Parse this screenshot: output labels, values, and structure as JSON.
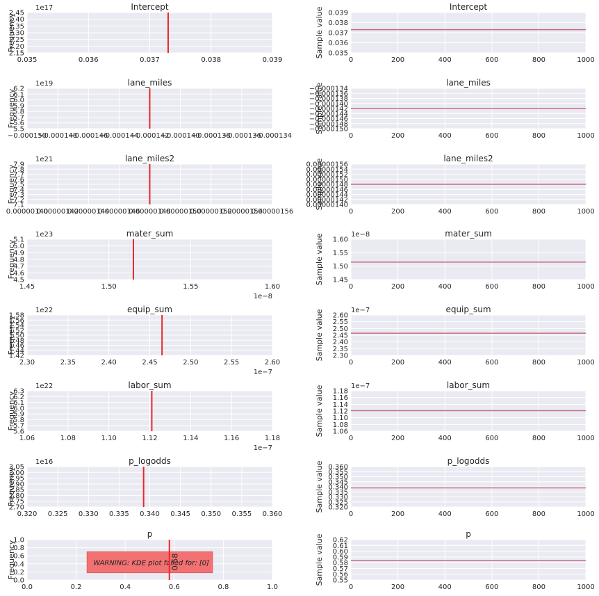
{
  "chart_data": [
    {
      "type": "histogram",
      "title": "Intercept",
      "ylabel": "Frequency",
      "offset_text": "1e17",
      "xoffset_text": "",
      "xticks": [
        "0.035",
        "0.036",
        "0.037",
        "0.038",
        "0.039"
      ],
      "yticks": [
        "2.15",
        "2.20",
        "2.25",
        "2.30",
        "2.35",
        "2.40",
        "2.45"
      ],
      "value_label": "0.0373"
    },
    {
      "type": "line",
      "title": "Intercept",
      "ylabel": "Sample value",
      "offset_text": "",
      "xticks": [
        "0",
        "200",
        "400",
        "600",
        "800",
        "1000"
      ],
      "yticks": [
        "0.035",
        "0.036",
        "0.037",
        "0.038",
        "0.039"
      ],
      "x_range": [
        0,
        1000
      ],
      "y_value": 0.0373
    },
    {
      "type": "histogram",
      "title": "lane_miles",
      "ylabel": "Frequency",
      "offset_text": "1e19",
      "xoffset_text": "",
      "xticks": [
        "−0.000150",
        "−0.000148",
        "−0.000146",
        "−0.000144",
        "−0.000142",
        "−0.000140",
        "−0.000138",
        "−0.000136",
        "−0.000134"
      ],
      "yticks": [
        "5.5",
        "5.6",
        "5.7",
        "5.8",
        "5.9",
        "6.0",
        "6.1",
        "6.2"
      ],
      "value_label": "−0.000142"
    },
    {
      "type": "line",
      "title": "lane_miles",
      "ylabel": "Sample value",
      "offset_text": "",
      "xticks": [
        "0",
        "200",
        "400",
        "600",
        "800",
        "1000"
      ],
      "yticks": [
        "−0.000150",
        "−0.000148",
        "−0.000146",
        "−0.000144",
        "−0.000142",
        "−0.000140",
        "−0.000138",
        "−0.000136",
        "−0.000134"
      ],
      "x_range": [
        0,
        1000
      ],
      "y_value": -0.000142
    },
    {
      "type": "histogram",
      "title": "lane_miles2",
      "ylabel": "Frequency",
      "offset_text": "1e21",
      "xoffset_text": "",
      "xticks": [
        "0.00000140",
        "0.00000142",
        "0.00000144",
        "0.00000146",
        "0.00000148",
        "0.00000150",
        "0.00000152",
        "0.00000154",
        "0.00000156"
      ],
      "yticks": [
        "7.1",
        "7.2",
        "7.3",
        "7.4",
        "7.5",
        "7.6",
        "7.7",
        "7.8",
        "7.9"
      ],
      "value_label": "0.00000148"
    },
    {
      "type": "line",
      "title": "lane_miles2",
      "ylabel": "Sample value",
      "offset_text": "",
      "xticks": [
        "0",
        "200",
        "400",
        "600",
        "800",
        "1000"
      ],
      "yticks": [
        "0.00000140",
        "0.00000142",
        "0.00000144",
        "0.00000146",
        "0.00000148",
        "0.00000150",
        "0.00000152",
        "0.00000154",
        "0.00000156"
      ],
      "x_range": [
        0,
        1000
      ],
      "y_value": 1.48e-06
    },
    {
      "type": "histogram",
      "title": "mater_sum",
      "ylabel": "Frequency",
      "offset_text": "1e23",
      "xoffset_text": "1e−8",
      "xticks": [
        "1.45",
        "1.50",
        "1.55",
        "1.60"
      ],
      "yticks": [
        "4.5",
        "4.6",
        "4.7",
        "4.8",
        "4.9",
        "5.0",
        "5.1"
      ],
      "value_label": "1.515"
    },
    {
      "type": "line",
      "title": "mater_sum",
      "ylabel": "Sample value",
      "offset_text": "1e−8",
      "xticks": [
        "0",
        "200",
        "400",
        "600",
        "800",
        "1000"
      ],
      "yticks": [
        "1.45",
        "1.50",
        "1.55",
        "1.60"
      ],
      "x_range": [
        0,
        1000
      ],
      "y_value": 1.515
    },
    {
      "type": "histogram",
      "title": "equip_sum",
      "ylabel": "Frequency",
      "offset_text": "1e22",
      "xoffset_text": "1e−7",
      "xticks": [
        "2.30",
        "2.35",
        "2.40",
        "2.45",
        "2.50",
        "2.55",
        "2.60"
      ],
      "yticks": [
        "1.42",
        "1.44",
        "1.46",
        "1.48",
        "1.50",
        "1.52",
        "1.54",
        "1.56",
        "1.58"
      ],
      "value_label": "2.465"
    },
    {
      "type": "line",
      "title": "equip_sum",
      "ylabel": "Sample value",
      "offset_text": "1e−7",
      "xticks": [
        "0",
        "200",
        "400",
        "600",
        "800",
        "1000"
      ],
      "yticks": [
        "2.30",
        "2.35",
        "2.40",
        "2.45",
        "2.50",
        "2.55",
        "2.60"
      ],
      "x_range": [
        0,
        1000
      ],
      "y_value": 2.465
    },
    {
      "type": "histogram",
      "title": "labor_sum",
      "ylabel": "Frequency",
      "offset_text": "1e22",
      "xoffset_text": "1e−7",
      "xticks": [
        "1.06",
        "1.08",
        "1.10",
        "1.12",
        "1.14",
        "1.16",
        "1.18"
      ],
      "yticks": [
        "5.6",
        "5.7",
        "5.8",
        "5.9",
        "6.0",
        "6.1",
        "6.2",
        "6.3"
      ],
      "value_label": "1.121"
    },
    {
      "type": "line",
      "title": "labor_sum",
      "ylabel": "Sample value",
      "offset_text": "1e−7",
      "xticks": [
        "0",
        "200",
        "400",
        "600",
        "800",
        "1000"
      ],
      "yticks": [
        "1.06",
        "1.08",
        "1.10",
        "1.12",
        "1.14",
        "1.16",
        "1.18"
      ],
      "x_range": [
        0,
        1000
      ],
      "y_value": 1.121
    },
    {
      "type": "histogram",
      "title": "p_logodds",
      "ylabel": "Frequency",
      "offset_text": "1e16",
      "xoffset_text": "",
      "xticks": [
        "0.320",
        "0.325",
        "0.330",
        "0.335",
        "0.340",
        "0.345",
        "0.350",
        "0.355",
        "0.360"
      ],
      "yticks": [
        "2.70",
        "2.75",
        "2.80",
        "2.85",
        "2.90",
        "2.95",
        "3.00",
        "3.05"
      ],
      "value_label": "0.339"
    },
    {
      "type": "line",
      "title": "p_logodds",
      "ylabel": "Sample value",
      "offset_text": "",
      "xticks": [
        "0",
        "200",
        "400",
        "600",
        "800",
        "1000"
      ],
      "yticks": [
        "0.320",
        "0.325",
        "0.330",
        "0.335",
        "0.340",
        "0.345",
        "0.350",
        "0.355",
        "0.360"
      ],
      "x_range": [
        0,
        1000
      ],
      "y_value": 0.339
    },
    {
      "type": "histogram",
      "title": "p",
      "ylabel": "Frequency",
      "offset_text": "",
      "xoffset_text": "",
      "xticks": [
        "0.0",
        "0.2",
        "0.4",
        "0.6",
        "0.8",
        "1.0"
      ],
      "yticks": [
        "0.0",
        "0.2",
        "0.4",
        "0.6",
        "0.8",
        "1.0"
      ],
      "value_label": "0.58",
      "annotation": "0.58",
      "warning": "WARNING: KDE plot failed for: [0]"
    },
    {
      "type": "line",
      "title": "p",
      "ylabel": "Sample value",
      "offset_text": "",
      "xticks": [
        "0",
        "200",
        "400",
        "600",
        "800",
        "1000"
      ],
      "yticks": [
        "0.55",
        "0.56",
        "0.57",
        "0.58",
        "0.59",
        "0.60",
        "0.61",
        "0.62"
      ],
      "x_range": [
        0,
        1000
      ],
      "y_value": 0.584
    }
  ],
  "colors": {
    "axes_bg": "#eaeaf2",
    "grid": "#ffffff",
    "hist_line": "#e8282c",
    "trace_line": "#c96b82",
    "warning_box": "#f26a6a",
    "text": "#262626"
  }
}
